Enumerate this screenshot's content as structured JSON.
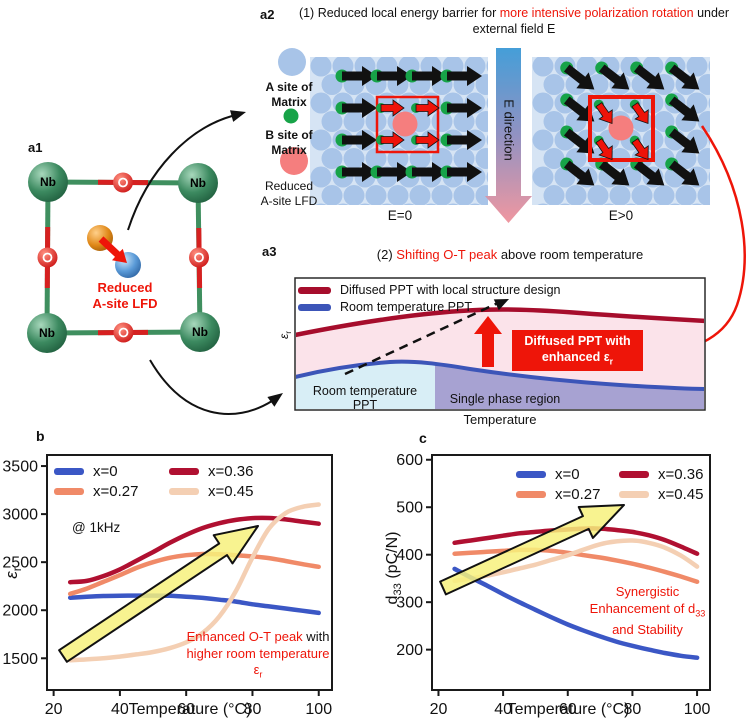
{
  "figure": {
    "panel_a1": {
      "label": "a1",
      "nb": "Nb",
      "caption_line1": "Reduced",
      "caption_line2": "A-site LFD"
    },
    "panel_a2": {
      "label": "a2",
      "title_prefix": "(1) Reduced local energy barrier for ",
      "title_highlight": "more intensive polarization rotation",
      "title_suffix": " under",
      "title_line2": "external field E",
      "legend_a_line1": "A site of",
      "legend_a_line2": "Matrix",
      "legend_b_line1": "B site of",
      "legend_b_line2": "Matrix",
      "legend_r_line1": "Reduced",
      "legend_r_line2": "A-site LFD",
      "e_direction": "E direction",
      "e_zero": "E=0",
      "e_pos": "E>0"
    },
    "panel_a3": {
      "label": "a3",
      "title_prefix": "(2) ",
      "title_highlight": "Shifting O-T peak",
      "title_suffix": " above room temperature",
      "legend1": "Diffused PPT with local structure design",
      "legend2": "Room temperature PPT",
      "ylabel_base": "ε",
      "ylabel_sub": "r",
      "xlabel": "Temperature",
      "region_left_line1": "Room temperature",
      "region_left_line2": "PPT",
      "region_right": "Single phase region",
      "callout_line1": "Diffused PPT with",
      "callout_line2_pre": "enhanced ε",
      "callout_line2_sub": "r"
    },
    "panel_b_label": "b",
    "panel_c_label": "c"
  },
  "colors": {
    "accent_red": "#ee1509",
    "lattice_bg": "#d6e4f4",
    "lattice_circle": "#a8c4e8",
    "site_green": "#17a348",
    "reduced_pink": "#f57e7e",
    "arrow_black": "#111111",
    "e_gradient_top": "#459ed8",
    "e_gradient_mid": "#9292c2",
    "e_gradient_bottom": "#f097a0",
    "a3_red_curve": "#a60d2c",
    "a3_blue_curve": "#3c55b8",
    "a3_pink_fill": "#fbe3ea",
    "a3_lightblue_fill": "#d8eef6",
    "a3_purple_fill": "#a7a2d2",
    "yellow_arrow": "#f7f17c"
  },
  "chart_data": [
    {
      "type": "line",
      "panel": "b",
      "xlabel": "Temperature (°C)",
      "ylabel_base": "ε",
      "ylabel_sub": "r",
      "ylabel_rest": "",
      "note": "@ 1kHz",
      "xlim": [
        18,
        104
      ],
      "ylim": [
        1170,
        3615
      ],
      "xticks": [
        20,
        40,
        60,
        80,
        100
      ],
      "yticks": [
        1500,
        2000,
        2500,
        3000,
        3500
      ],
      "x": [
        25,
        30,
        35,
        40,
        45,
        50,
        55,
        60,
        65,
        70,
        75,
        80,
        85,
        90,
        95,
        100
      ],
      "series": [
        {
          "name": "x=0",
          "color": "#3b57c5",
          "values": [
            2130,
            2140,
            2148,
            2150,
            2152,
            2152,
            2150,
            2140,
            2128,
            2110,
            2090,
            2062,
            2040,
            2018,
            1995,
            1972
          ]
        },
        {
          "name": "x=0.27",
          "color": "#f08a68",
          "values": [
            2170,
            2225,
            2295,
            2365,
            2440,
            2500,
            2545,
            2572,
            2585,
            2582,
            2572,
            2560,
            2542,
            2512,
            2480,
            2452
          ]
        },
        {
          "name": "x=0.36",
          "color": "#b01031",
          "values": [
            2292,
            2305,
            2355,
            2425,
            2515,
            2605,
            2700,
            2785,
            2855,
            2905,
            2940,
            2958,
            2960,
            2945,
            2922,
            2900
          ]
        },
        {
          "name": "x=0.45",
          "color": "#f4cfb3",
          "values": [
            1480,
            1488,
            1500,
            1518,
            1540,
            1565,
            1605,
            1665,
            1765,
            1935,
            2200,
            2550,
            2850,
            3010,
            3075,
            3100
          ]
        }
      ],
      "draw_order": [
        0,
        1,
        2,
        3
      ],
      "annotation": {
        "red1": "Enhanced O-T peak",
        "black1": " with",
        "line2": "higher room temperature",
        "line3_base": "ε",
        "line3_sub": "r"
      }
    },
    {
      "type": "line",
      "panel": "c",
      "xlabel": "Temperature (°C)",
      "ylabel_base": "d",
      "ylabel_sub": "33",
      "ylabel_rest": " (pC/N)",
      "xlim": [
        18,
        104
      ],
      "ylim": [
        115,
        610
      ],
      "xticks": [
        20,
        40,
        60,
        80,
        100
      ],
      "yticks": [
        200,
        300,
        400,
        500,
        600
      ],
      "x": [
        25,
        30,
        35,
        40,
        45,
        50,
        55,
        60,
        65,
        70,
        75,
        80,
        85,
        90,
        95,
        100
      ],
      "series": [
        {
          "name": "x=0",
          "color": "#3b57c5",
          "values": [
            370,
            352,
            335,
            317,
            300,
            284,
            268,
            253,
            240,
            228,
            217,
            208,
            200,
            193,
            187,
            183
          ]
        },
        {
          "name": "x=0.27",
          "color": "#f08a68",
          "values": [
            402,
            404,
            406,
            408,
            410,
            410,
            408,
            404,
            399,
            394,
            388,
            381,
            373,
            364,
            354,
            343
          ]
        },
        {
          "name": "x=0.36",
          "color": "#b01031",
          "values": [
            425,
            430,
            435,
            440,
            445,
            448,
            451,
            453,
            455,
            455,
            452,
            448,
            441,
            431,
            417,
            402
          ]
        },
        {
          "name": "x=0.45",
          "color": "#f4cfb3",
          "values": [
            345,
            350,
            356,
            363,
            371,
            379,
            389,
            399,
            411,
            422,
            428,
            430,
            425,
            415,
            398,
            375
          ]
        }
      ],
      "draw_order": [
        1,
        2,
        3,
        0
      ],
      "annotation": {
        "line1": "Synergistic",
        "line2_pre": "Enhancement of d",
        "line2_sub": "33",
        "line3": "and Stability"
      }
    }
  ]
}
